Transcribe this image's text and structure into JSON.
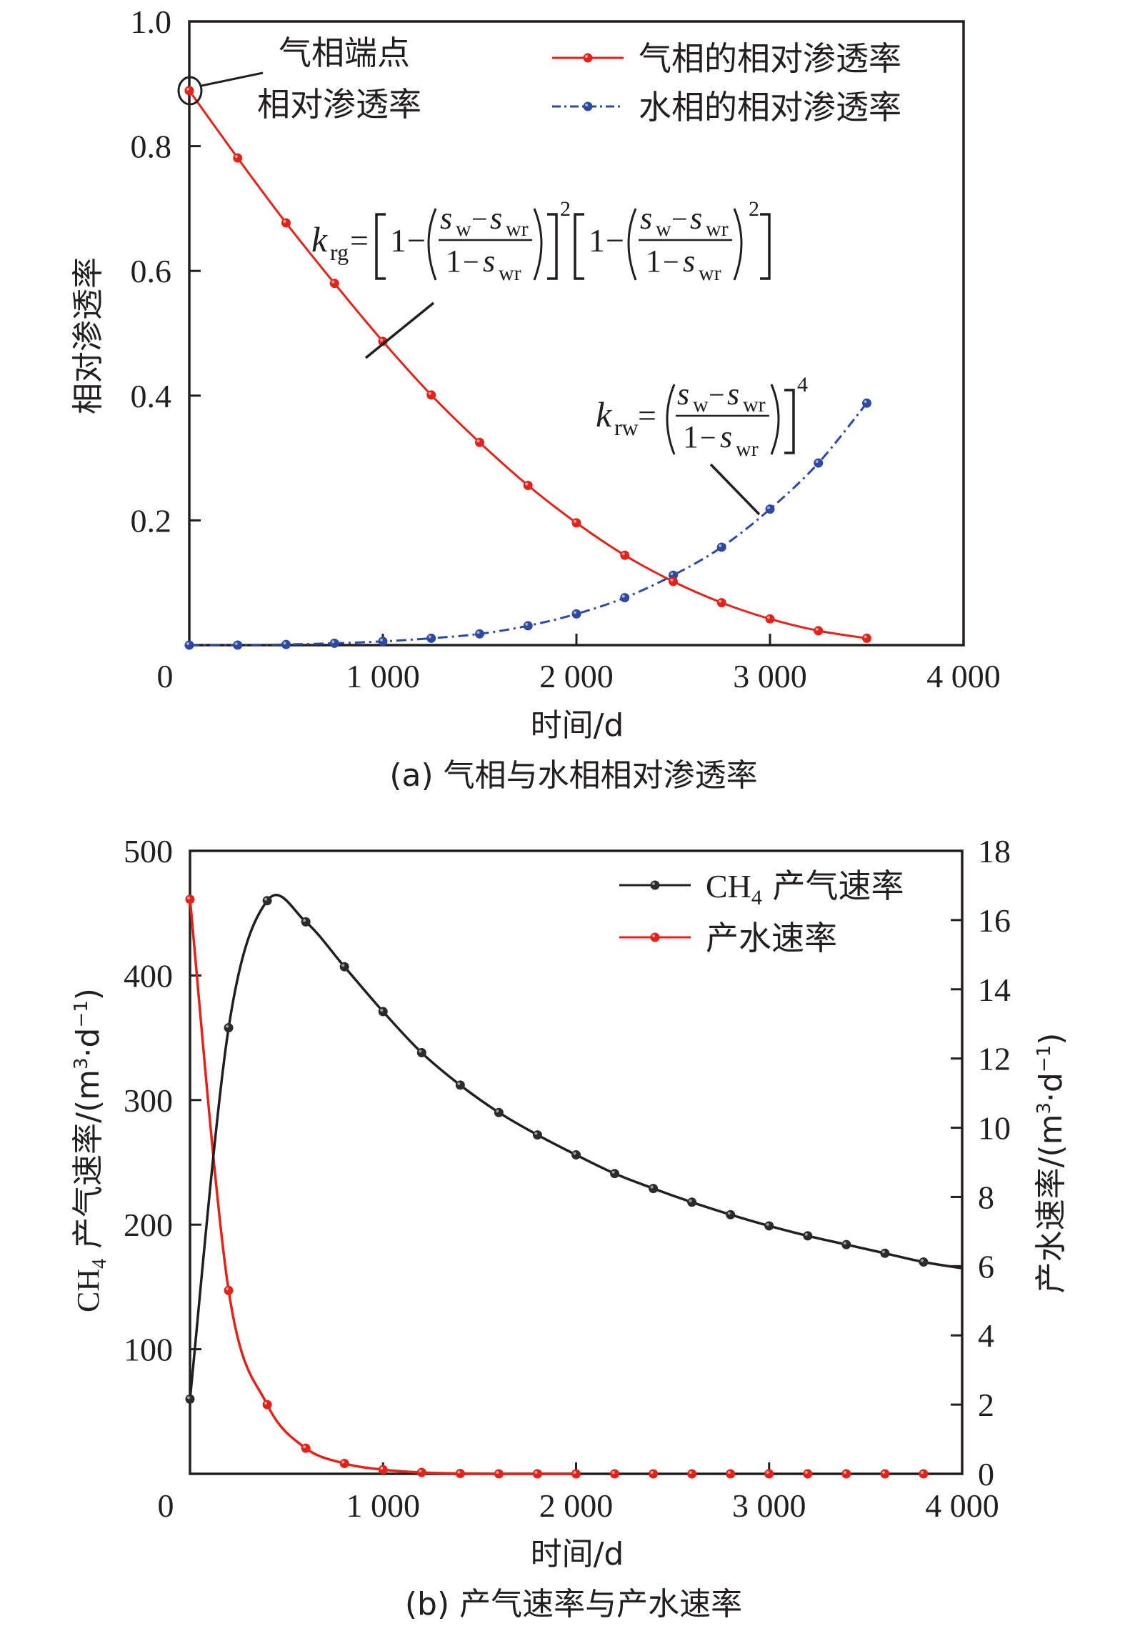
{
  "figure": {
    "panels": 2
  },
  "chart_data": [
    {
      "id": "a",
      "type": "line",
      "caption": "(a) 气相与水相相对渗透率",
      "title": "",
      "xlabel": "时间/d",
      "ylabel": "相对渗透率",
      "xlim": [
        0,
        4000
      ],
      "ylim": [
        0,
        1.0
      ],
      "xticks": [
        0,
        1000,
        2000,
        3000,
        4000
      ],
      "xtick_labels": [
        "0",
        "1 000",
        "2 000",
        "3 000",
        "4 000"
      ],
      "yticks": [
        0.2,
        0.4,
        0.6,
        0.8,
        1.0
      ],
      "ytick_labels": [
        "0.2",
        "0.4",
        "0.6",
        "0.8",
        "1.0"
      ],
      "grid": false,
      "legend_position": "top-right",
      "x": [
        0,
        250,
        500,
        750,
        1000,
        1250,
        1500,
        1750,
        2000,
        2250,
        2500,
        2750,
        3000,
        3250,
        3500
      ],
      "series": [
        {
          "name": "气相的相对渗透率",
          "color": "#e2231a",
          "line_style": "solid",
          "marker": "circle",
          "values": [
            0.889,
            0.781,
            0.677,
            0.58,
            0.487,
            0.401,
            0.325,
            0.256,
            0.196,
            0.144,
            0.102,
            0.068,
            0.042,
            0.023,
            0.011
          ]
        },
        {
          "name": "水相的相对渗透率",
          "color": "#2e4aa0",
          "line_style": "dash-dot",
          "marker": "circle",
          "values": [
            0.0,
            0.0,
            0.001,
            0.003,
            0.006,
            0.011,
            0.018,
            0.031,
            0.05,
            0.076,
            0.112,
            0.157,
            0.218,
            0.292,
            0.388
          ]
        }
      ],
      "annotations": {
        "endpoint": {
          "line1": "气相端点",
          "line2": "相对渗透率",
          "x": 0,
          "y": 0.889
        },
        "krg": {
          "k": "k",
          "sub": "rg",
          "eq": "=",
          "one": "1",
          "minus": "−",
          "s": "s",
          "w": "w",
          "wr": "wr",
          "exp": "2"
        },
        "krw": {
          "k": "k",
          "sub": "rw",
          "eq": "=",
          "one": "1",
          "minus": "−",
          "s": "s",
          "w": "w",
          "wr": "wr",
          "exp": "4"
        }
      }
    },
    {
      "id": "b",
      "type": "line",
      "caption": "(b) 产气速率与产水速率",
      "title": "",
      "xlabel": "时间/d",
      "ylabel": "CH₄ 产气速率/(m³·d⁻¹)",
      "ylabel_parts": {
        "pre": "CH",
        "sub": "4",
        "mid": " 产气速率/(m",
        "sup3": "3",
        "dot": "·d",
        "supm1": "−1",
        "close": ")"
      },
      "y2label": "产水速率/(m³·d⁻¹)",
      "y2label_parts": {
        "pre": "产水速率/(m",
        "sup3": "3",
        "dot": "·d",
        "supm1": "−1",
        "close": ")"
      },
      "xlim": [
        0,
        4000
      ],
      "ylim": [
        0,
        500
      ],
      "y2lim": [
        0,
        18
      ],
      "xticks": [
        0,
        1000,
        2000,
        3000,
        4000
      ],
      "xtick_labels": [
        "0",
        "1 000",
        "2 000",
        "3 000",
        "4 000"
      ],
      "yticks": [
        100,
        200,
        300,
        400,
        500
      ],
      "ytick_labels": [
        "100",
        "200",
        "300",
        "400",
        "500"
      ],
      "y2ticks": [
        0,
        2,
        4,
        6,
        8,
        10,
        12,
        14,
        16,
        18
      ],
      "y2tick_labels": [
        "0",
        "2",
        "4",
        "6",
        "8",
        "10",
        "12",
        "14",
        "16",
        "18"
      ],
      "grid": false,
      "legend_position": "top-right",
      "x": [
        0,
        200,
        400,
        600,
        800,
        1000,
        1200,
        1400,
        1600,
        1800,
        2000,
        2200,
        2400,
        2600,
        2800,
        3000,
        3200,
        3400,
        3600,
        3800
      ],
      "series": [
        {
          "name": "CH4 产气速率",
          "legend_parts": {
            "pre": "CH",
            "sub": "4",
            "post": " 产气速率"
          },
          "axis": "left",
          "color": "#231f20",
          "line_style": "solid",
          "marker": "circle",
          "values": [
            60,
            358,
            460,
            443,
            407,
            371,
            338,
            312,
            290,
            272,
            256,
            241,
            229,
            218,
            208,
            199,
            191,
            184,
            177,
            170
          ],
          "line_end": {
            "x": 4000,
            "y": 165
          }
        },
        {
          "name": "产水速率",
          "axis": "right",
          "color": "#e2231a",
          "line_style": "solid",
          "marker": "circle",
          "values": [
            16.6,
            5.3,
            2.0,
            0.74,
            0.3,
            0.12,
            0.04,
            0.01,
            0,
            0,
            0,
            0,
            0,
            0,
            0,
            0,
            0,
            0,
            0,
            0
          ]
        }
      ]
    }
  ]
}
